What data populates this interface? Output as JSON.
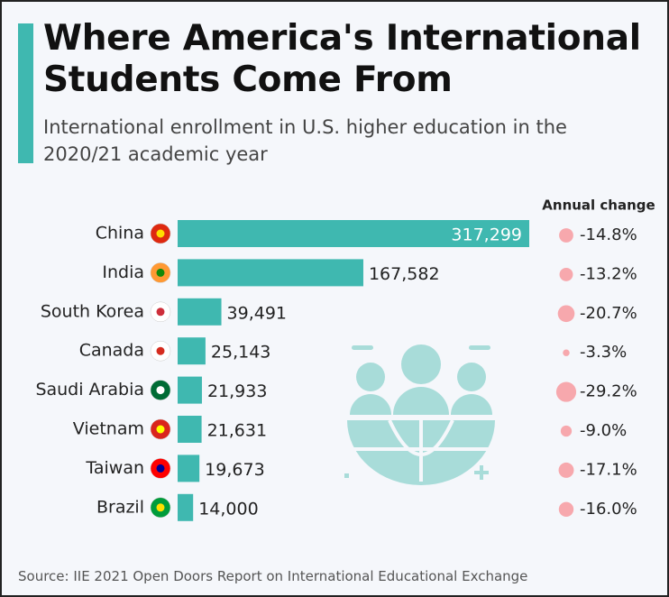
{
  "chart_data": {
    "type": "bar",
    "orientation": "horizontal",
    "title": "Where America's International Students Come From",
    "subtitle": "International enrollment in U.S. higher education in the 2020/21 academic year",
    "categories": [
      "China",
      "India",
      "South Korea",
      "Canada",
      "Saudi Arabia",
      "Vietnam",
      "Taiwan",
      "Brazil"
    ],
    "values": [
      317299,
      167582,
      39491,
      25143,
      21933,
      21631,
      19673,
      14000
    ],
    "value_labels": [
      "317,299",
      "167,582",
      "39,491",
      "25,143",
      "21,933",
      "21,631",
      "19,673",
      "14,000"
    ],
    "color": "#3fb8b0",
    "annual_change": {
      "label": "Annual change",
      "values": [
        -14.8,
        -13.2,
        -20.7,
        -3.3,
        -29.2,
        -9.0,
        -17.1,
        -16.0
      ],
      "value_labels": [
        "-14.8%",
        "-13.2%",
        "-20.7%",
        "-3.3%",
        "-29.2%",
        "-9.0%",
        "-17.1%",
        "-16.0%"
      ],
      "color": "#f7a8ad"
    },
    "source": "Source: IIE 2021 Open Doors Report on International Educational Exchange"
  }
}
